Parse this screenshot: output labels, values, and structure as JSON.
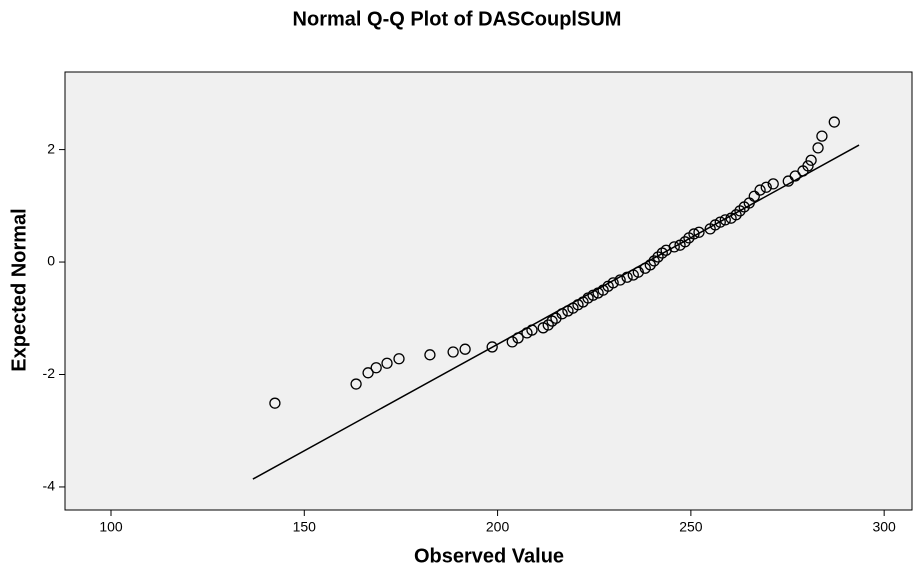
{
  "chart_data": {
    "type": "scatter",
    "title": "Normal Q-Q Plot of DASCouplSUM",
    "x_label": "Observed Value",
    "y_label": "Expected Normal",
    "x": [
      142.4,
      163.4,
      166.5,
      168.6,
      171.4,
      174.5,
      182.5,
      188.5,
      191.6,
      198.6,
      203.8,
      205.3,
      207.6,
      208.9,
      211.8,
      213.1,
      214.1,
      215.1,
      216.7,
      218.2,
      219.5,
      220.8,
      222.1,
      223.4,
      224.7,
      226.0,
      227.3,
      228.6,
      229.9,
      231.7,
      233.5,
      235.1,
      236.4,
      238.2,
      239.5,
      240.5,
      241.5,
      242.6,
      243.6,
      245.7,
      247.2,
      248.5,
      249.5,
      250.8,
      252.1,
      255.0,
      256.3,
      257.6,
      258.9,
      260.4,
      261.7,
      262.7,
      263.8,
      265.1,
      266.4,
      267.9,
      269.5,
      271.3,
      275.2,
      277.0,
      279.0,
      280.3,
      281.1,
      282.9,
      283.9,
      287.1
    ],
    "values": [
      -2.51,
      -2.17,
      -1.97,
      -1.88,
      -1.8,
      -1.72,
      -1.65,
      -1.6,
      -1.55,
      -1.51,
      -1.42,
      -1.35,
      -1.26,
      -1.21,
      -1.17,
      -1.12,
      -1.05,
      -1.0,
      -0.92,
      -0.87,
      -0.82,
      -0.76,
      -0.71,
      -0.64,
      -0.59,
      -0.55,
      -0.5,
      -0.43,
      -0.37,
      -0.32,
      -0.27,
      -0.23,
      -0.18,
      -0.11,
      -0.05,
      0.02,
      0.09,
      0.16,
      0.21,
      0.27,
      0.3,
      0.36,
      0.43,
      0.5,
      0.53,
      0.59,
      0.66,
      0.71,
      0.75,
      0.78,
      0.84,
      0.91,
      0.98,
      1.05,
      1.17,
      1.28,
      1.33,
      1.39,
      1.44,
      1.53,
      1.62,
      1.71,
      1.81,
      2.03,
      2.24,
      2.49
    ],
    "color": "#000000",
    "reference_line": {
      "x": [
        136.7,
        293.5
      ],
      "y": [
        -3.86,
        2.08
      ]
    },
    "xlim": [
      88.1,
      307.2
    ],
    "ylim": [
      -4.41,
      3.38
    ],
    "xticks": [
      100,
      150,
      200,
      250,
      300
    ],
    "yticks": [
      -4,
      -2,
      0,
      2
    ]
  }
}
